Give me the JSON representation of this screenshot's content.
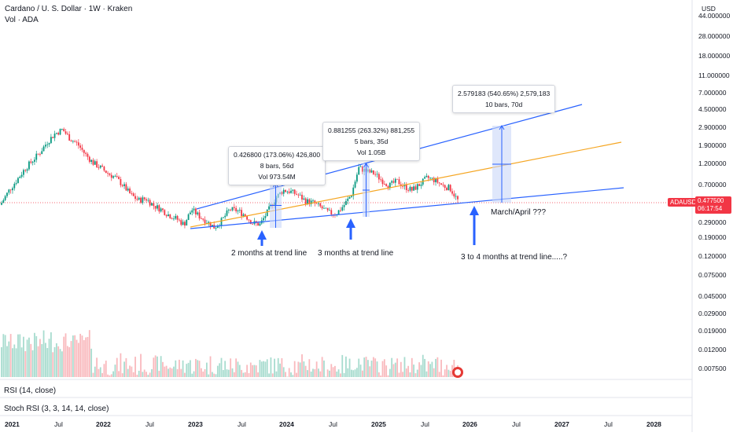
{
  "header": {
    "symbol_line": "Cardano / U. S. Dollar · 1W · Kraken",
    "volume_line": "Vol · ADA",
    "currency": "USD"
  },
  "price_axis": {
    "labels": [
      "44.000000",
      "28.000000",
      "18.000000",
      "11.000000",
      "7.000000",
      "4.500000",
      "2.900000",
      "1.900000",
      "1.200000",
      "0.700000",
      "0.290000",
      "0.190000",
      "0.120000",
      "0.075000",
      "0.045000",
      "0.029000",
      "0.019000",
      "0.012000",
      "0.007500"
    ],
    "current_price": "0.477500",
    "countdown": "06:17:54",
    "ticker": "ADAUSD"
  },
  "time_axis": {
    "labels": [
      "2021",
      "Jul",
      "2022",
      "Jul",
      "2023",
      "Jul",
      "2024",
      "Jul",
      "2025",
      "Jul",
      "2026",
      "Jul",
      "2027",
      "Jul",
      "2028"
    ]
  },
  "measurements": [
    {
      "line1": "0.426800 (173.06%) 426,800",
      "line2": "8 bars, 56d",
      "line3": "Vol 973.54M"
    },
    {
      "line1": "0.881255 (263.32%) 881,255",
      "line2": "5 bars, 35d",
      "line3": "Vol 1.05B"
    },
    {
      "line1": "2.579183 (540.65%) 2,579,183",
      "line2": "10 bars, 70d",
      "line3": ""
    }
  ],
  "annotations": {
    "two_months": "2 months at trend line",
    "three_months": "3 months at trend line",
    "three_to_four": "3 to 4 months at trend line.....?",
    "march_april": "March/April ???"
  },
  "indicators": {
    "rsi": "RSI (14, close)",
    "stoch": "Stoch RSI (3, 3, 14, 14, close)"
  },
  "colors": {
    "up": "#089981",
    "down": "#f23645",
    "trend_blue": "#2962ff",
    "trend_orange": "#f5a623",
    "measure_fill": "#c9d7f8",
    "vol_up": "#a8dccf",
    "vol_down": "#f9b9bd"
  },
  "chart_data": {
    "type": "candlestick",
    "scale": "log",
    "interval": "1W",
    "price_labels": [
      0.45,
      0.62,
      0.8,
      1.05,
      1.3,
      1.6,
      2.1,
      2.6,
      2.9,
      2.3,
      2.0,
      1.55,
      1.25,
      1.1,
      0.95,
      0.85,
      0.7,
      0.55,
      0.48,
      0.5,
      0.42,
      0.38,
      0.33,
      0.3,
      0.26,
      0.38,
      0.32,
      0.28,
      0.24,
      0.29,
      0.38,
      0.37,
      0.33,
      0.27,
      0.26,
      0.36,
      0.5,
      0.62,
      0.6,
      0.55,
      0.47,
      0.45,
      0.4,
      0.35,
      0.34,
      0.42,
      0.55,
      1.1,
      1.0,
      0.95,
      0.8,
      0.7,
      0.78,
      0.68,
      0.62,
      0.72,
      0.85,
      0.8,
      0.7,
      0.65,
      0.48
    ],
    "trend_lines": {
      "lower_support": "2023-2026",
      "upper_channel": "2023-2026",
      "middle_orange": "2023-2026"
    }
  }
}
